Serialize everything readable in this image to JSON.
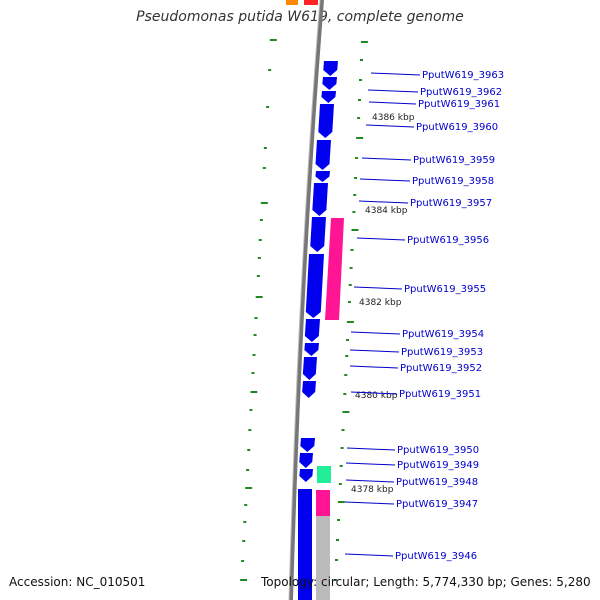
{
  "title": "Pseudomonas putida W619, complete genome",
  "footer": {
    "accession": "Accession: NC_010501",
    "summary": "Topology: circular; Length: 5,774,330 bp; Genes: 5,280"
  },
  "colors": {
    "cds": "#0000ee",
    "rna_pink": "#ff1493",
    "rna_teal": "#22ee99",
    "backbone": "#777777",
    "gc_tick": "#228822",
    "label_line": "#0000cc"
  },
  "labels": [
    "PputW619_3963",
    "PputW619_3962",
    "PputW619_3961",
    "PputW619_3960",
    "PputW619_3959",
    "PputW619_3958",
    "PputW619_3957",
    "PputW619_3956",
    "PputW619_3955",
    "PputW619_3954",
    "PputW619_3953",
    "PputW619_3952",
    "PputW619_3951",
    "PputW619_3950",
    "PputW619_3949",
    "PputW619_3948",
    "PputW619_3947",
    "PputW619_3946"
  ],
  "kbp_markers": [
    "4386 kbp",
    "4384 kbp",
    "4382 kbp",
    "4380 kbp",
    "4378 kbp"
  ]
}
